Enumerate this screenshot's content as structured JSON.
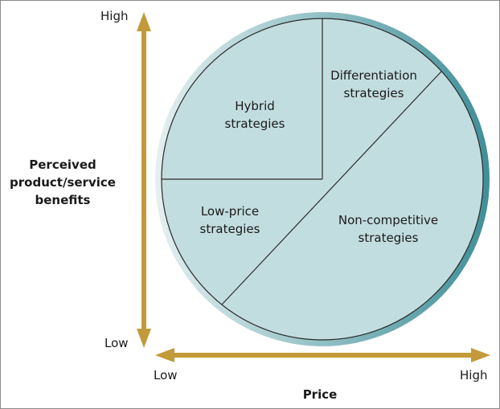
{
  "vertical_axis": {
    "title_lines": [
      "Perceived",
      "product/service",
      "benefits"
    ],
    "high_label": "High",
    "low_label": "Low"
  },
  "horizontal_axis": {
    "title": "Price",
    "low_label": "Low",
    "high_label": "High"
  },
  "regions": {
    "hybrid": [
      "Hybrid",
      "strategies"
    ],
    "differentiation": [
      "Differentiation",
      "strategies"
    ],
    "low_price": [
      "Low-price",
      "strategies"
    ],
    "non_competitive": [
      "Non-competitive",
      "strategies"
    ]
  },
  "colors": {
    "region_fill": "#c2dde0",
    "ring_light": "#e4f0f1",
    "ring_dark": "#3f8f98",
    "arrow": "#c39a3a",
    "outline": "#2b2b2b"
  }
}
